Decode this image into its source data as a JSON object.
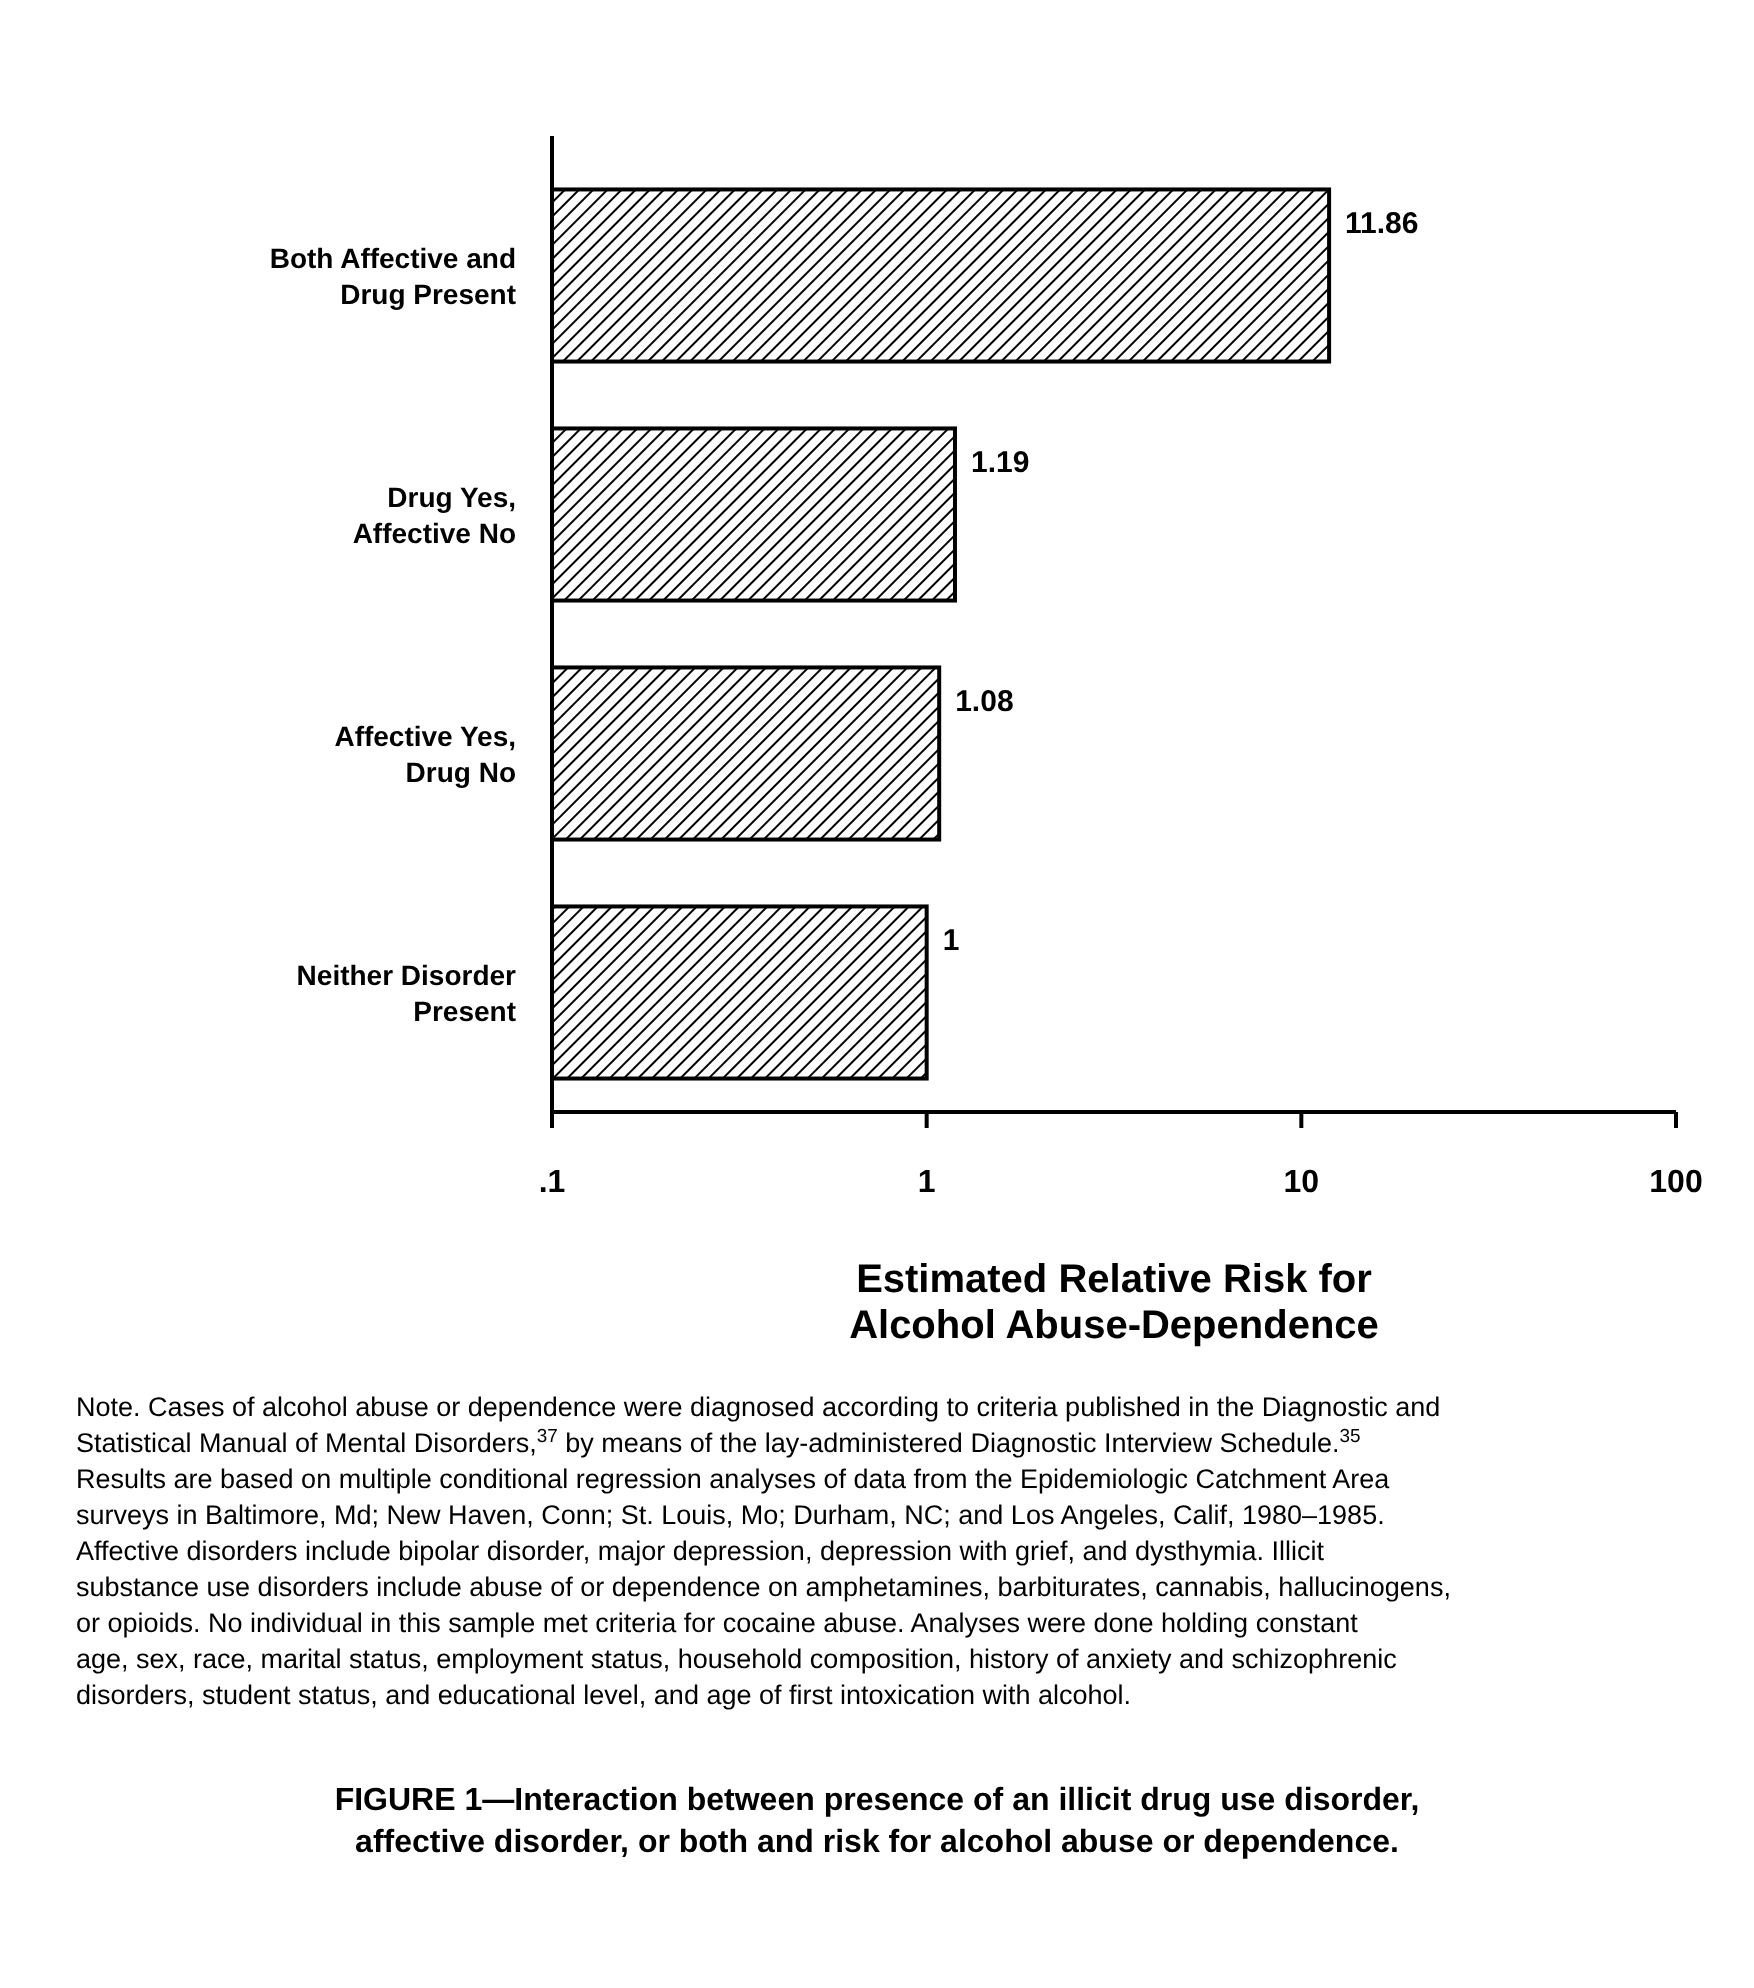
{
  "chart_data": {
    "type": "bar",
    "orientation": "horizontal",
    "categories": [
      "Both Affective and Drug Present",
      "Drug Yes, Affective No",
      "Affective Yes, Drug No",
      "Neither Disorder Present"
    ],
    "values": [
      11.86,
      1.19,
      1.08,
      1
    ],
    "color": "#000000",
    "data_labels": true,
    "log": "x",
    "xlim": [
      0.1,
      100
    ],
    "xticks": [
      {
        "value": 0.1,
        "label": ".1"
      },
      1,
      10,
      100
    ],
    "xlabel": "Estimated Relative Risk for Alcohol Abuse-Dependence",
    "grid": false,
    "annotations": [
      "Note. Cases of alcohol abuse or dependence were diagnosed according to criteria published in the Diagnostic and Statistical Manual of Mental Disorders,$^{37}$ by means of the lay-administered Diagnostic Interview Schedule.$^{35}$ Results are based on multiple conditional regression analyses of data from the Epidemiologic Catchment Area surveys in Baltimore, Md; New Haven, Conn; St. Louis, Mo; Durham, NC; and Los Angeles, Calif, 1980–1985. Affective disorders include bipolar disorder, major depression, depression with grief, and dysthymia. Illicit substance use disorders include abuse of or dependence on amphetamines, barbiturates, cannabis, hallucinogens, or opioids. No individual in this sample met criteria for cocaine abuse. Analyses were done holding constant age, sex, race, marital status, employment status, household composition, history of anxiety and schizophrenic disorders, student status, and educational level, and age of first intoxication with alcohol.",
      "FIGURE 1—Interaction between presence of an illicit drug use disorder, affective disorder, or both and risk for alcohol abuse or dependence."
    ]
  }
}
